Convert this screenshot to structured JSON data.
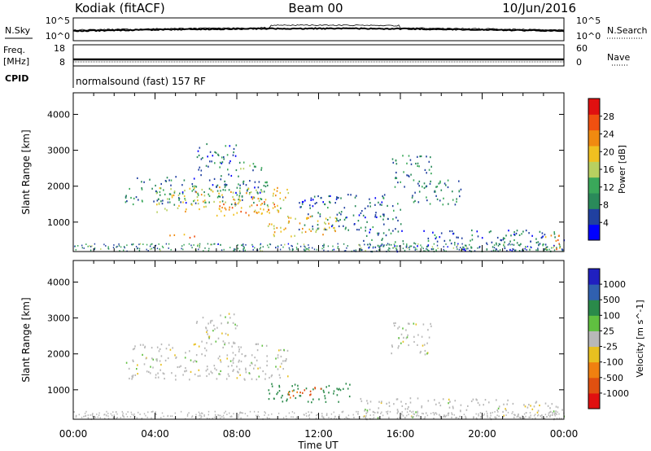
{
  "header": {
    "station": "Kodiak (fitACF)",
    "beam": "Beam 00",
    "date": "10/Jun/2016"
  },
  "noise_panel": {
    "left_label": "N.Sky",
    "right_label": "N.Search",
    "left_ticks": [
      "10^5",
      "10^0"
    ],
    "right_ticks": [
      "10^5",
      "10^0"
    ]
  },
  "freq_panel": {
    "left_label_top": "Freq.",
    "left_label_bottom": "[MHz]",
    "right_label": "Nave",
    "left_ticks": [
      "18",
      "8"
    ],
    "right_ticks": [
      "60",
      "0"
    ]
  },
  "cpid_panel": {
    "label": "CPID",
    "text": "normalsound (fast) 157 RF"
  },
  "chart_data": [
    {
      "type": "heatmap",
      "name": "power",
      "ylabel": "Slant Range [km]",
      "yticks": [
        "1000",
        "2000",
        "3000",
        "4000"
      ],
      "ylim": [
        180,
        4600
      ],
      "xlim": [
        0,
        24
      ],
      "colorbar": {
        "label": "Power [dB]",
        "ticks": [
          "28",
          "24",
          "20",
          "16",
          "12",
          "8",
          "4"
        ],
        "tick_values": [
          28,
          24,
          20,
          16,
          12,
          8,
          4
        ],
        "range": [
          0,
          32
        ],
        "colors": [
          "#0000ff",
          "#2040a0",
          "#2a8a5a",
          "#3aa85a",
          "#b8d060",
          "#f0c020",
          "#f08a10",
          "#f05010",
          "#e01010"
        ]
      },
      "regions": [
        {
          "t0": 2.5,
          "t1": 9.5,
          "r0": 1500,
          "r1": 2300,
          "v": 8
        },
        {
          "t0": 4.0,
          "t1": 10.5,
          "r0": 1300,
          "r1": 2000,
          "v": 18
        },
        {
          "t0": 7.0,
          "t1": 10.0,
          "r0": 1200,
          "r1": 1600,
          "v": 23
        },
        {
          "t0": 6.0,
          "t1": 8.0,
          "r0": 2300,
          "r1": 3200,
          "v": 7
        },
        {
          "t0": 8.0,
          "t1": 9.5,
          "r0": 2400,
          "r1": 2700,
          "v": 12
        },
        {
          "t0": 9.5,
          "t1": 13.0,
          "r0": 600,
          "r1": 1200,
          "v": 20
        },
        {
          "t0": 4.7,
          "t1": 6.2,
          "r0": 580,
          "r1": 720,
          "v": 24
        },
        {
          "t0": 11.0,
          "t1": 16.0,
          "r0": 800,
          "r1": 1800,
          "v": 7
        },
        {
          "t0": 15.5,
          "t1": 17.5,
          "r0": 2000,
          "r1": 2900,
          "v": 9
        },
        {
          "t0": 16.5,
          "t1": 19.0,
          "r0": 1500,
          "r1": 2200,
          "v": 9
        },
        {
          "t0": 14.0,
          "t1": 24.0,
          "r0": 200,
          "r1": 800,
          "v": 7
        },
        {
          "t0": 23.0,
          "t1": 24.0,
          "r0": 250,
          "r1": 700,
          "v": 22
        }
      ]
    },
    {
      "type": "heatmap",
      "name": "velocity",
      "xlabel": "Time UT",
      "ylabel": "Slant Range [km]",
      "xticks": [
        "00:00",
        "04:00",
        "08:00",
        "12:00",
        "16:00",
        "20:00",
        "00:00"
      ],
      "xtick_values": [
        0,
        4,
        8,
        12,
        16,
        20,
        24
      ],
      "yticks": [
        "1000",
        "2000",
        "3000",
        "4000"
      ],
      "ylim": [
        180,
        4600
      ],
      "xlim": [
        0,
        24
      ],
      "colorbar": {
        "label": "Velocity [m s^-1]",
        "ticks": [
          "1000",
          "500",
          "100",
          "25",
          "-25",
          "-100",
          "-500",
          "-1000"
        ],
        "colors": [
          "#2020c0",
          "#3060b0",
          "#2a8a4a",
          "#60c040",
          "#b8b8b8",
          "#e8c020",
          "#f08010",
          "#e05010",
          "#e01010"
        ]
      },
      "regions": [
        {
          "t0": 2.5,
          "t1": 10.5,
          "r0": 1300,
          "r1": 2300,
          "v": 0
        },
        {
          "t0": 6.0,
          "t1": 8.0,
          "r0": 2300,
          "r1": 3200,
          "v": 0
        },
        {
          "t0": 9.5,
          "t1": 13.5,
          "r0": 650,
          "r1": 1200,
          "v": 150
        },
        {
          "t0": 10.5,
          "t1": 12.5,
          "r0": 800,
          "r1": 1100,
          "v": -300
        },
        {
          "t0": 14.0,
          "t1": 24.0,
          "r0": 200,
          "r1": 800,
          "v": 0
        },
        {
          "t0": 15.5,
          "t1": 17.5,
          "r0": 2000,
          "r1": 2900,
          "v": 0
        }
      ]
    }
  ]
}
